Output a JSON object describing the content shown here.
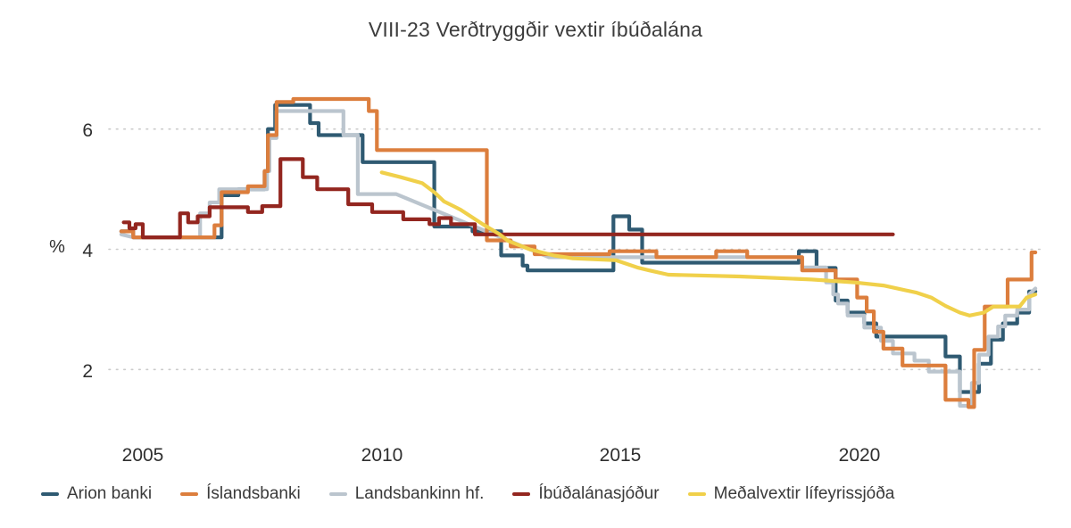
{
  "page": {
    "background": "#ffffff"
  },
  "chart_data": {
    "type": "line",
    "title": "VIII-23 Verðtryggðir vextir íbúðalána",
    "ylabel": "%",
    "xlabel": "",
    "xlim": [
      2004.3,
      2023.8
    ],
    "ylim": [
      1.0,
      6.9
    ],
    "grid": {
      "horizontal": "dotted",
      "vertical": "off"
    },
    "legend_position": "bottom",
    "yticks": [
      {
        "value": 2,
        "label": "2"
      },
      {
        "value": 4,
        "label": "4"
      },
      {
        "value": 6,
        "label": "6"
      }
    ],
    "xticks": [
      {
        "value": 2005,
        "label": "2005"
      },
      {
        "value": 2010,
        "label": "2010"
      },
      {
        "value": 2015,
        "label": "2015"
      },
      {
        "value": 2020,
        "label": "2020"
      }
    ],
    "series": [
      {
        "id": "arion-banki",
        "name": "Arion banki",
        "color": "#2F5A72",
        "interp": "step",
        "z": 0,
        "points": [
          [
            2004.55,
            4.3
          ],
          [
            2004.8,
            4.2
          ],
          [
            2006.65,
            4.9
          ],
          [
            2007.0,
            5.0
          ],
          [
            2007.55,
            5.3
          ],
          [
            2007.62,
            6.0
          ],
          [
            2007.77,
            6.4
          ],
          [
            2008.5,
            6.1
          ],
          [
            2008.68,
            5.9
          ],
          [
            2009.6,
            5.45
          ],
          [
            2011.1,
            4.38
          ],
          [
            2011.9,
            4.3
          ],
          [
            2012.5,
            3.9
          ],
          [
            2012.95,
            3.73
          ],
          [
            2013.05,
            3.65
          ],
          [
            2014.85,
            4.55
          ],
          [
            2015.18,
            4.33
          ],
          [
            2015.45,
            3.78
          ],
          [
            2018.73,
            3.97
          ],
          [
            2019.1,
            3.69
          ],
          [
            2019.5,
            3.15
          ],
          [
            2019.75,
            2.95
          ],
          [
            2020.1,
            2.77
          ],
          [
            2020.35,
            2.55
          ],
          [
            2021.8,
            2.22
          ],
          [
            2022.1,
            1.63
          ],
          [
            2022.5,
            2.1
          ],
          [
            2022.75,
            2.5
          ],
          [
            2023.0,
            2.77
          ],
          [
            2023.3,
            2.95
          ],
          [
            2023.55,
            3.3
          ],
          [
            2023.68,
            3.3
          ]
        ]
      },
      {
        "id": "islandsbanki",
        "name": "Íslandsbanki",
        "color": "#DC7E3D",
        "interp": "step",
        "z": 2,
        "points": [
          [
            2004.55,
            4.3
          ],
          [
            2004.8,
            4.2
          ],
          [
            2006.5,
            4.4
          ],
          [
            2006.65,
            4.95
          ],
          [
            2007.2,
            5.05
          ],
          [
            2007.55,
            5.3
          ],
          [
            2007.62,
            5.9
          ],
          [
            2007.8,
            6.45
          ],
          [
            2008.15,
            6.5
          ],
          [
            2009.73,
            6.3
          ],
          [
            2009.9,
            5.65
          ],
          [
            2012.2,
            4.15
          ],
          [
            2012.7,
            4.05
          ],
          [
            2013.2,
            3.92
          ],
          [
            2014.77,
            3.97
          ],
          [
            2015.75,
            3.87
          ],
          [
            2017.0,
            3.97
          ],
          [
            2017.65,
            3.87
          ],
          [
            2018.8,
            3.65
          ],
          [
            2019.5,
            3.5
          ],
          [
            2019.95,
            3.2
          ],
          [
            2020.15,
            2.97
          ],
          [
            2020.3,
            2.63
          ],
          [
            2020.5,
            2.35
          ],
          [
            2020.9,
            2.07
          ],
          [
            2021.8,
            1.5
          ],
          [
            2022.28,
            1.38
          ],
          [
            2022.4,
            2.33
          ],
          [
            2022.62,
            3.05
          ],
          [
            2023.1,
            3.5
          ],
          [
            2023.6,
            3.95
          ],
          [
            2023.68,
            3.95
          ]
        ]
      },
      {
        "id": "landsbankinn",
        "name": "Landsbankinn hf.",
        "color": "#BBC5CE",
        "interp": "linear",
        "z": 1,
        "points": [
          [
            2004.55,
            4.25
          ],
          [
            2004.8,
            4.2
          ],
          [
            2006.2,
            4.2
          ],
          [
            2006.2,
            4.6
          ],
          [
            2006.4,
            4.6
          ],
          [
            2006.4,
            4.78
          ],
          [
            2006.6,
            4.78
          ],
          [
            2006.6,
            5.0
          ],
          [
            2007.6,
            5.0
          ],
          [
            2007.6,
            5.3
          ],
          [
            2007.65,
            5.3
          ],
          [
            2007.65,
            5.85
          ],
          [
            2007.8,
            5.85
          ],
          [
            2007.8,
            6.3
          ],
          [
            2009.2,
            6.3
          ],
          [
            2009.2,
            5.9
          ],
          [
            2009.5,
            5.9
          ],
          [
            2009.5,
            4.92
          ],
          [
            2010.3,
            4.92
          ],
          [
            2013.5,
            3.87
          ],
          [
            2018.8,
            3.87
          ],
          [
            2018.8,
            3.7
          ],
          [
            2019.3,
            3.7
          ],
          [
            2019.3,
            3.45
          ],
          [
            2019.45,
            3.45
          ],
          [
            2019.45,
            3.25
          ],
          [
            2019.55,
            3.25
          ],
          [
            2019.55,
            3.1
          ],
          [
            2019.75,
            3.1
          ],
          [
            2019.75,
            2.9
          ],
          [
            2020.1,
            2.9
          ],
          [
            2020.1,
            2.7
          ],
          [
            2020.45,
            2.7
          ],
          [
            2020.45,
            2.48
          ],
          [
            2020.7,
            2.48
          ],
          [
            2020.7,
            2.27
          ],
          [
            2021.15,
            2.27
          ],
          [
            2021.15,
            2.15
          ],
          [
            2021.45,
            2.15
          ],
          [
            2021.45,
            1.97
          ],
          [
            2022.1,
            1.97
          ],
          [
            2022.1,
            1.4
          ],
          [
            2022.35,
            1.4
          ],
          [
            2022.35,
            1.78
          ],
          [
            2022.5,
            1.78
          ],
          [
            2022.5,
            2.25
          ],
          [
            2022.7,
            2.25
          ],
          [
            2022.7,
            2.55
          ],
          [
            2022.9,
            2.55
          ],
          [
            2022.9,
            2.72
          ],
          [
            2023.05,
            2.72
          ],
          [
            2023.05,
            2.9
          ],
          [
            2023.3,
            2.9
          ],
          [
            2023.3,
            3.0
          ],
          [
            2023.55,
            3.0
          ],
          [
            2023.55,
            3.25
          ],
          [
            2023.68,
            3.35
          ]
        ]
      },
      {
        "id": "ibudalanasjodur",
        "name": "Íbúðalánasjóður",
        "color": "#93261F",
        "interp": "step",
        "z": 3,
        "points": [
          [
            2004.6,
            4.45
          ],
          [
            2004.72,
            4.35
          ],
          [
            2004.85,
            4.42
          ],
          [
            2005.0,
            4.2
          ],
          [
            2005.78,
            4.6
          ],
          [
            2005.95,
            4.45
          ],
          [
            2006.15,
            4.55
          ],
          [
            2006.4,
            4.7
          ],
          [
            2007.2,
            4.62
          ],
          [
            2007.5,
            4.72
          ],
          [
            2007.88,
            5.5
          ],
          [
            2008.35,
            5.2
          ],
          [
            2008.65,
            5.0
          ],
          [
            2009.3,
            4.75
          ],
          [
            2009.8,
            4.62
          ],
          [
            2010.45,
            4.5
          ],
          [
            2011.0,
            4.42
          ],
          [
            2011.2,
            4.52
          ],
          [
            2011.45,
            4.42
          ],
          [
            2011.95,
            4.25
          ],
          [
            2020.7,
            4.25
          ]
        ]
      },
      {
        "id": "medalvextir-lifeyrissjoda",
        "name": "Meðalvextir lífeyrissjóða",
        "color": "#F0D04A",
        "interp": "linear",
        "z": 4,
        "points": [
          [
            2010.0,
            5.28
          ],
          [
            2010.4,
            5.2
          ],
          [
            2010.85,
            5.1
          ],
          [
            2011.1,
            4.95
          ],
          [
            2011.3,
            4.8
          ],
          [
            2011.65,
            4.66
          ],
          [
            2011.9,
            4.53
          ],
          [
            2012.15,
            4.4
          ],
          [
            2012.45,
            4.26
          ],
          [
            2012.65,
            4.14
          ],
          [
            2013.1,
            4.0
          ],
          [
            2013.6,
            3.9
          ],
          [
            2014.0,
            3.85
          ],
          [
            2014.9,
            3.82
          ],
          [
            2015.35,
            3.7
          ],
          [
            2015.6,
            3.65
          ],
          [
            2016.0,
            3.58
          ],
          [
            2017.5,
            3.55
          ],
          [
            2019.0,
            3.5
          ],
          [
            2019.9,
            3.45
          ],
          [
            2020.5,
            3.4
          ],
          [
            2021.2,
            3.28
          ],
          [
            2021.5,
            3.2
          ],
          [
            2021.8,
            3.06
          ],
          [
            2022.1,
            2.95
          ],
          [
            2022.3,
            2.9
          ],
          [
            2022.6,
            2.95
          ],
          [
            2022.8,
            3.05
          ],
          [
            2023.35,
            3.05
          ],
          [
            2023.5,
            3.2
          ],
          [
            2023.68,
            3.25
          ]
        ]
      }
    ]
  }
}
